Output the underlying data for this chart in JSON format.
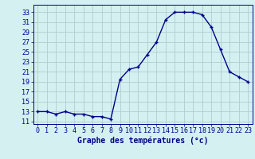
{
  "hours": [
    0,
    1,
    2,
    3,
    4,
    5,
    6,
    7,
    8,
    9,
    10,
    11,
    12,
    13,
    14,
    15,
    16,
    17,
    18,
    19,
    20,
    21,
    22,
    23
  ],
  "temperatures": [
    13,
    13,
    12.5,
    13,
    12.5,
    12.5,
    12,
    12,
    11.5,
    19.5,
    21.5,
    22,
    24.5,
    27,
    31.5,
    33,
    33,
    33,
    32.5,
    30,
    25.5,
    21,
    20,
    19
  ],
  "line_color": "#00008B",
  "marker": "+",
  "marker_size": 3.5,
  "linewidth": 1.0,
  "bg_color": "#d4f0f0",
  "grid_color": "#b0cece",
  "xlabel": "Graphe des températures (°c)",
  "xlabel_fontsize": 7,
  "ylabel_ticks": [
    11,
    13,
    15,
    17,
    19,
    21,
    23,
    25,
    27,
    29,
    31,
    33
  ],
  "ylim": [
    10.5,
    34.5
  ],
  "xlim": [
    -0.5,
    23.5
  ],
  "tick_fontsize": 6,
  "spine_color": "#555555"
}
